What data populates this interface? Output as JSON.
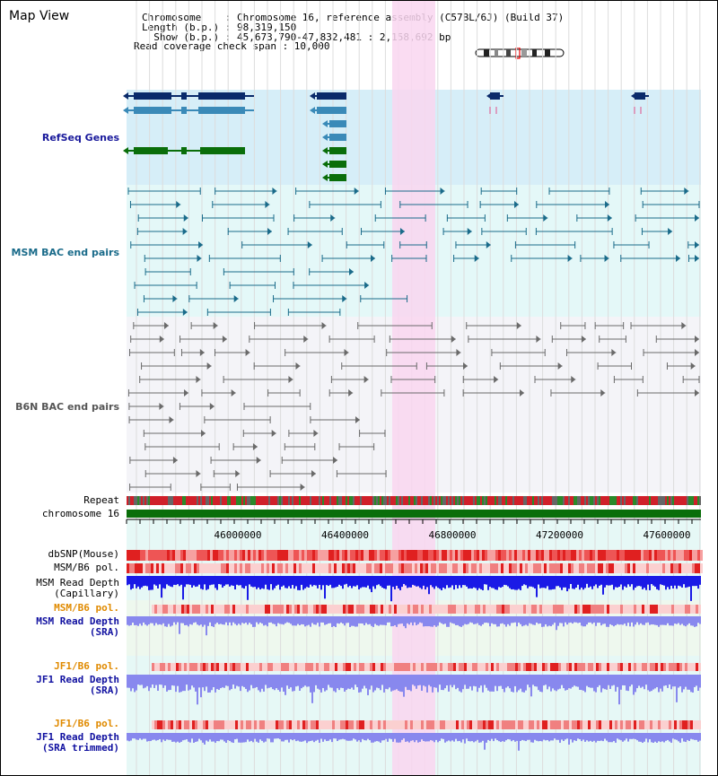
{
  "header": {
    "title": "Map View",
    "chromosome_line": "Chromosome    : Chromosome 16, reference assembly (C57BL/6J) (Build 37)",
    "length_line": "Length (b.p.) : 98,319,150",
    "show_line": "  Show (b.p.) : 45,673,790-47,832,481 : 2,158,692 bp",
    "coverage_line": "Read coverage check span : 10,000"
  },
  "tracks": {
    "refseq": {
      "label": "RefSeq Genes",
      "color": "#1a1a8c"
    },
    "msm_bac": {
      "label": "MSM BAC end pairs",
      "color": "#1a6b8a"
    },
    "b6n_bac": {
      "label": "B6N BAC end pairs",
      "color": "#555555"
    },
    "repeat": {
      "label": "Repeat"
    },
    "chromosome": {
      "label": "chromosome 16"
    },
    "dbsnp": {
      "label": "dbSNP(Mouse)"
    },
    "msm_b6_pol": {
      "label": "MSM/B6 pol."
    },
    "msm_depth_cap": {
      "label": "MSM Read Depth\n(Capillary)"
    },
    "msm_b6_pol2": {
      "label": "MSM/B6 pol.",
      "color": "#e08a00"
    },
    "msm_depth_sra": {
      "label": "MSM Read Depth\n(SRA)",
      "color": "#1010a0"
    },
    "jf1_b6_pol": {
      "label": "JF1/B6 pol.",
      "color": "#e08a00"
    },
    "jf1_depth_sra": {
      "label": "JF1 Read Depth\n(SRA)",
      "color": "#1010a0"
    },
    "jf1_b6_pol2": {
      "label": "JF1/B6 pol.",
      "color": "#e08a00"
    },
    "jf1_depth_trim": {
      "label": "JF1 Read Depth\n(SRA trimmed)",
      "color": "#1010a0"
    }
  },
  "axis": {
    "ticks": [
      "46000000",
      "46400000",
      "46800000",
      "47200000",
      "47600000"
    ]
  },
  "colors": {
    "highlight": "#f9d6f0",
    "refseq_bg": "#d6eef8",
    "msm_bg": "#e4f8f8",
    "chrom_bar": "#0a6e0a",
    "depth_dark": "#1a1ae6",
    "depth_light": "#8888ee"
  }
}
